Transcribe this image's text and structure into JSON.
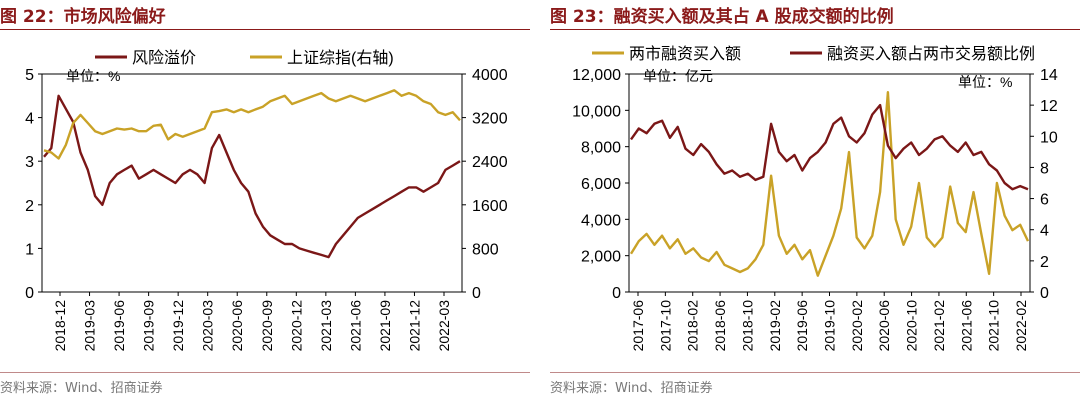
{
  "charts": [
    {
      "title": "图 22：市场风险偏好",
      "source": "资料来源：Wind、招商证券",
      "chart_data": {
        "type": "line",
        "unit_label": "单位：%",
        "legend": [
          "风险溢价",
          "上证综指(右轴)"
        ],
        "x_ticks": [
          "2018-12",
          "2019-03",
          "2019-06",
          "2019-09",
          "2019-12",
          "2020-03",
          "2020-06",
          "2020-09",
          "2020-12",
          "2021-03",
          "2021-06",
          "2021-09",
          "2021-12",
          "2022-03"
        ],
        "y_left": {
          "min": 0,
          "max": 5,
          "ticks": [
            "0",
            "1",
            "2",
            "3",
            "4",
            "5"
          ]
        },
        "y_right": {
          "min": 0,
          "max": 4000,
          "ticks": [
            "0",
            "800",
            "1600",
            "2400",
            "3200",
            "4000"
          ]
        },
        "series": [
          {
            "name": "风险溢价",
            "axis": "left",
            "color": "#7B1717",
            "values": [
              3.1,
              3.3,
              4.5,
              4.2,
              3.9,
              3.2,
              2.8,
              2.2,
              2.0,
              2.5,
              2.7,
              2.8,
              2.9,
              2.6,
              2.7,
              2.8,
              2.7,
              2.6,
              2.5,
              2.7,
              2.8,
              2.7,
              2.5,
              3.3,
              3.6,
              3.2,
              2.8,
              2.5,
              2.3,
              1.8,
              1.5,
              1.3,
              1.2,
              1.1,
              1.1,
              1.0,
              0.95,
              0.9,
              0.85,
              0.8,
              1.1,
              1.3,
              1.5,
              1.7,
              1.8,
              1.9,
              2.0,
              2.1,
              2.2,
              2.3,
              2.4,
              2.4,
              2.3,
              2.4,
              2.5,
              2.8,
              2.9,
              3.0
            ]
          },
          {
            "name": "上证综指(右轴)",
            "axis": "right",
            "color": "#C9A227",
            "values": [
              2600,
              2560,
              2450,
              2700,
              3100,
              3250,
              3100,
              2950,
              2900,
              2950,
              3000,
              2980,
              3000,
              2950,
              2950,
              3050,
              3070,
              2800,
              2900,
              2850,
              2900,
              2950,
              3000,
              3300,
              3320,
              3350,
              3300,
              3350,
              3300,
              3350,
              3400,
              3500,
              3550,
              3600,
              3450,
              3500,
              3550,
              3600,
              3650,
              3550,
              3500,
              3550,
              3600,
              3550,
              3500,
              3550,
              3600,
              3650,
              3700,
              3600,
              3650,
              3600,
              3500,
              3450,
              3300,
              3250,
              3300,
              3150
            ]
          }
        ]
      }
    },
    {
      "title": "图 23：融资买入额及其占 A 股成交额的比例",
      "source": "资料来源：Wind、招商证券",
      "chart_data": {
        "type": "line",
        "unit_label_left": "单位：亿元",
        "unit_label_right": "单位：%",
        "legend": [
          "两市融资买入额",
          "融资买入额占两市交易额比例"
        ],
        "x_ticks": [
          "2017-06",
          "2017-10",
          "2018-02",
          "2018-06",
          "2018-10",
          "2019-02",
          "2019-06",
          "2019-10",
          "2020-02",
          "2020-06",
          "2020-10",
          "2021-02",
          "2021-06",
          "2021-10",
          "2022-02"
        ],
        "y_left": {
          "min": 0,
          "max": 12000,
          "ticks": [
            "0",
            "2,000",
            "4,000",
            "6,000",
            "8,000",
            "10,000",
            "12,000"
          ]
        },
        "y_right": {
          "min": 0,
          "max": 14,
          "ticks": [
            "0",
            "2",
            "4",
            "6",
            "8",
            "10",
            "12",
            "14"
          ]
        },
        "series": [
          {
            "name": "两市融资买入额",
            "axis": "left",
            "color": "#C9A227",
            "values": [
              2100,
              2800,
              3200,
              2600,
              3100,
              2400,
              2900,
              2100,
              2400,
              1900,
              1700,
              2200,
              1500,
              1300,
              1100,
              1300,
              1800,
              2600,
              6400,
              3100,
              2100,
              2600,
              1800,
              2300,
              900,
              2000,
              3100,
              4600,
              7700,
              3000,
              2400,
              3100,
              5500,
              11000,
              4000,
              2600,
              3600,
              6000,
              3000,
              2500,
              3000,
              5800,
              3800,
              3300,
              5500,
              3200,
              1000,
              6000,
              4200,
              3400,
              3700,
              2800
            ]
          },
          {
            "name": "融资买入额占两市交易额比例",
            "axis": "right",
            "color": "#7B1717",
            "values": [
              9.8,
              10.5,
              10.2,
              10.8,
              11.0,
              9.9,
              10.6,
              9.2,
              8.8,
              9.5,
              9.0,
              8.2,
              7.6,
              7.8,
              7.4,
              7.6,
              7.2,
              7.4,
              10.8,
              9.0,
              8.4,
              8.8,
              7.8,
              8.6,
              9.0,
              9.6,
              10.8,
              11.2,
              10.0,
              9.6,
              10.2,
              11.4,
              12.0,
              9.4,
              8.6,
              9.2,
              9.6,
              8.8,
              9.2,
              9.8,
              10.0,
              9.4,
              9.0,
              9.6,
              8.8,
              9.0,
              8.2,
              7.8,
              7.0,
              6.6,
              6.8,
              6.6
            ]
          }
        ]
      }
    }
  ]
}
